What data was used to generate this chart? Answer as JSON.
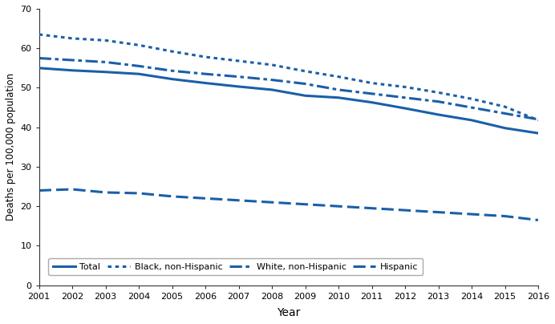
{
  "years": [
    2001,
    2002,
    2003,
    2004,
    2005,
    2006,
    2007,
    2008,
    2009,
    2010,
    2011,
    2012,
    2013,
    2014,
    2015,
    2016
  ],
  "total": [
    55.0,
    54.4,
    54.0,
    53.5,
    52.2,
    51.2,
    50.3,
    49.5,
    48.0,
    47.5,
    46.3,
    44.8,
    43.2,
    41.8,
    39.8,
    38.5
  ],
  "black_nonhisp": [
    63.5,
    62.5,
    62.0,
    60.8,
    59.2,
    57.8,
    56.8,
    55.8,
    54.2,
    52.8,
    51.2,
    50.2,
    48.8,
    47.2,
    45.2,
    41.8
  ],
  "white_nonhisp": [
    57.5,
    57.0,
    56.5,
    55.5,
    54.3,
    53.5,
    52.8,
    52.0,
    51.0,
    49.5,
    48.5,
    47.5,
    46.5,
    45.0,
    43.5,
    42.0
  ],
  "hispanic": [
    24.0,
    24.3,
    23.5,
    23.3,
    22.5,
    22.0,
    21.5,
    21.0,
    20.5,
    20.0,
    19.5,
    19.0,
    18.5,
    18.0,
    17.5,
    16.5
  ],
  "line_color": "#1a5fa8",
  "ylim": [
    0,
    70
  ],
  "yticks": [
    0,
    10,
    20,
    30,
    40,
    50,
    60,
    70
  ],
  "ylabel": "Deaths per 100,000 population",
  "xlabel": "Year",
  "legend_labels": [
    "Total",
    "Black, non-Hispanic",
    "White, non-Hispanic",
    "Hispanic"
  ],
  "bg_color": "#ffffff"
}
